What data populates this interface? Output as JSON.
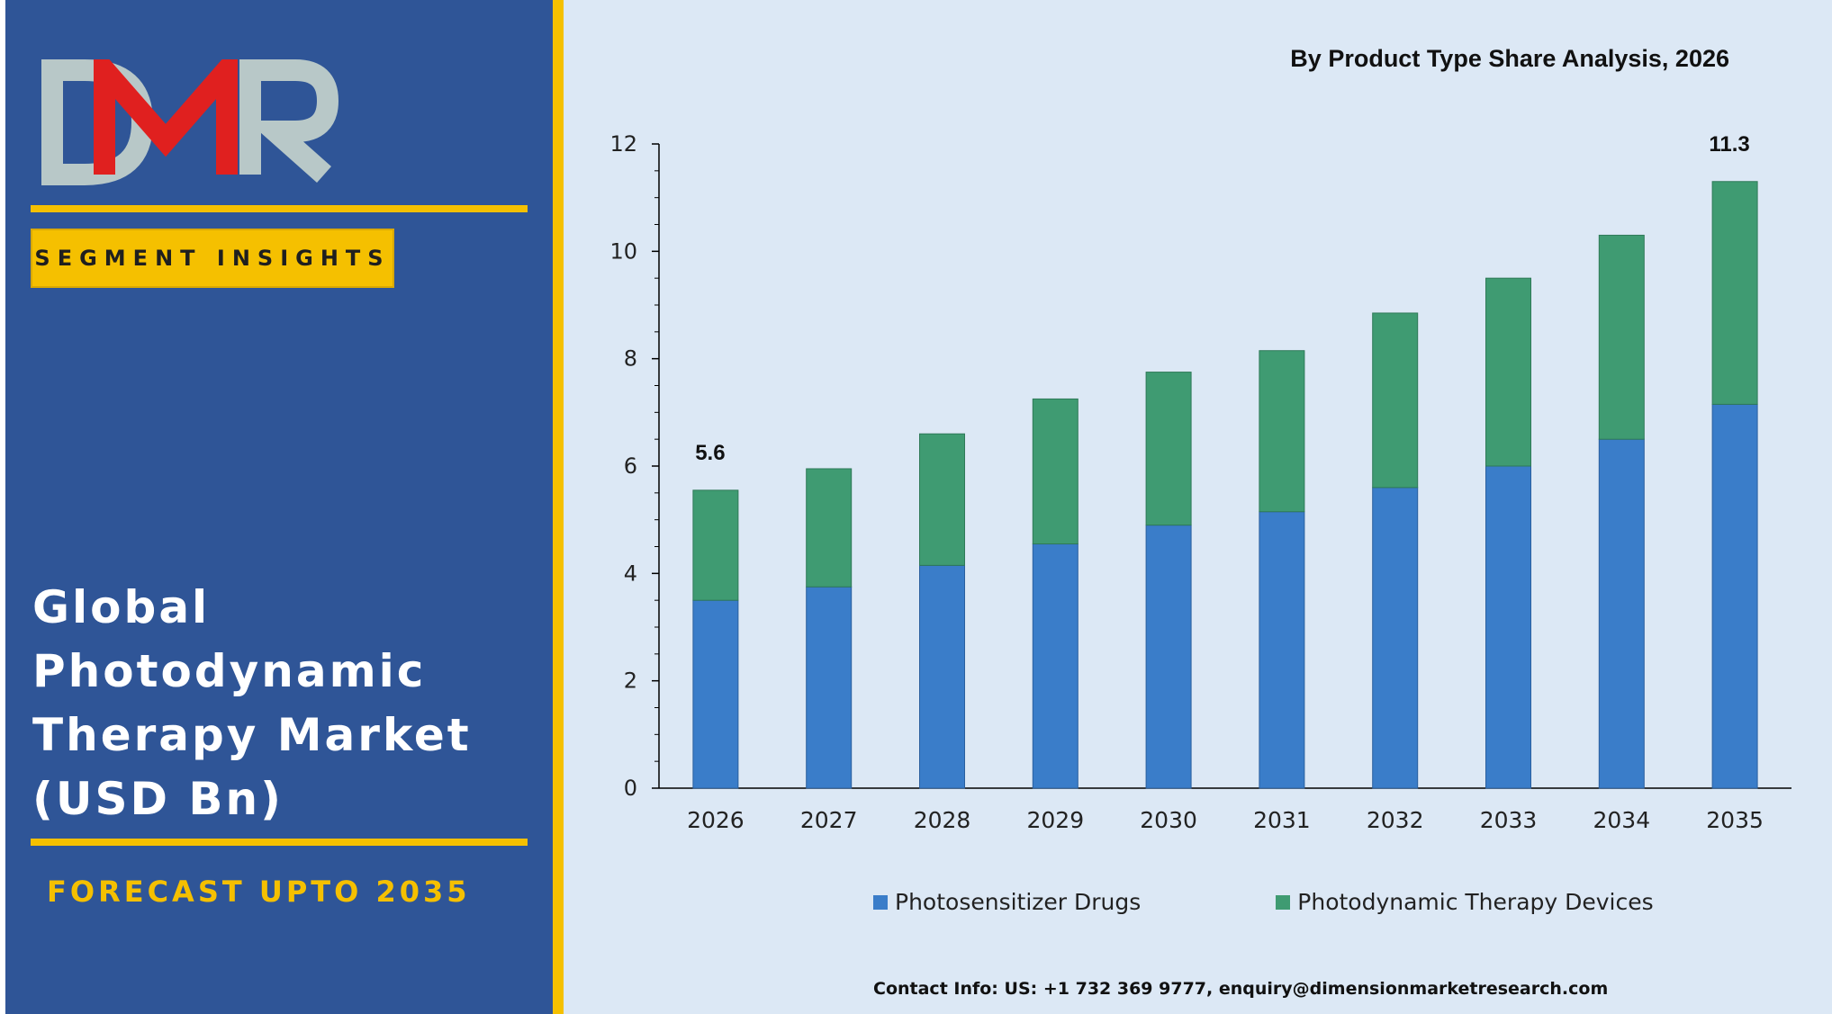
{
  "brand": {
    "logo_text": "DMR",
    "colors": {
      "panel": "#2f5597",
      "accent": "#f5c000",
      "logo_red": "#e0201f",
      "logo_grey": "#b8c8c8"
    }
  },
  "left": {
    "segment_label": "SEGMENT INSIGHTS",
    "market_title": "Global\nPhotodynamic\nTherapy Market\n(USD Bn)",
    "forecast": "FORECAST UPTO 2035"
  },
  "chart_data": {
    "type": "bar",
    "stacked": true,
    "title": "By Product Type Share Analysis, 2026",
    "categories": [
      "2026",
      "2027",
      "2028",
      "2029",
      "2030",
      "2031",
      "2032",
      "2033",
      "2034",
      "2035"
    ],
    "series": [
      {
        "name": "Photosensitizer Drugs",
        "color": "#3a7dc9",
        "values": [
          3.5,
          3.75,
          4.15,
          4.55,
          4.9,
          5.15,
          5.6,
          6.0,
          6.5,
          7.15
        ]
      },
      {
        "name": "Photodynamic Therapy Devices",
        "color": "#3f9b72",
        "values": [
          2.05,
          2.2,
          2.45,
          2.7,
          2.85,
          3.0,
          3.25,
          3.5,
          3.8,
          4.15
        ]
      }
    ],
    "data_labels": [
      {
        "category": "2026",
        "text": "5.6"
      },
      {
        "category": "2035",
        "text": "11.3"
      }
    ],
    "ylim": [
      0,
      12
    ],
    "yticks": [
      0,
      2,
      4,
      6,
      8,
      10,
      12
    ],
    "xlabel": "",
    "ylabel": "",
    "legend_position": "bottom",
    "grid": false
  },
  "contact": "Contact Info: US: +1 732 369 9777, enquiry@dimensionmarketresearch.com"
}
